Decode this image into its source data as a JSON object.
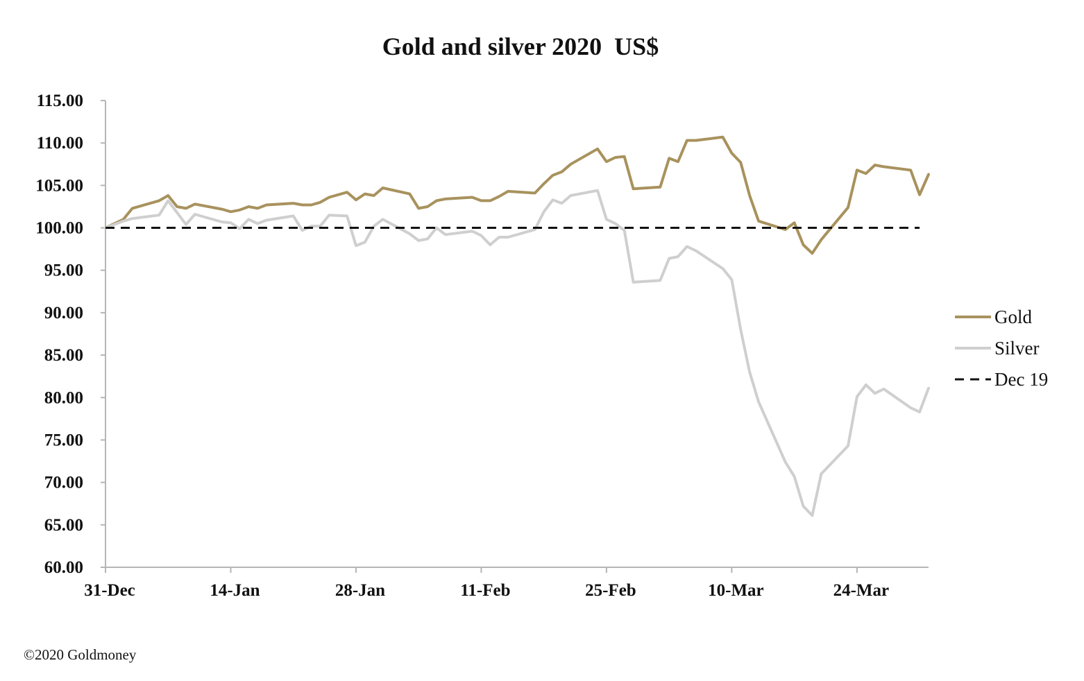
{
  "colors": {
    "gold": "#A8925D",
    "silver": "#CFCFCF",
    "baseline": "#111111",
    "axis": "#B5B5B5"
  },
  "footer": {
    "copyright": "©2020 Goldmoney"
  },
  "chart_data": {
    "type": "line",
    "title": "Gold and silver 2020  US$",
    "xlabel": "",
    "ylabel": "",
    "ylim": [
      60,
      115
    ],
    "y_ticks": [
      60,
      65,
      70,
      75,
      80,
      85,
      90,
      95,
      100,
      105,
      110,
      115
    ],
    "y_tick_labels": [
      "60.00",
      "65.00",
      "70.00",
      "75.00",
      "80.00",
      "85.00",
      "90.00",
      "95.00",
      "100.00",
      "105.00",
      "110.00",
      "115.00"
    ],
    "x_range": [
      "2019-12-31",
      "2020-04-01"
    ],
    "x_ticks": [
      "2019-12-31",
      "2020-01-14",
      "2020-01-28",
      "2020-02-11",
      "2020-02-25",
      "2020-03-10",
      "2020-03-24"
    ],
    "x_tick_labels": [
      "31-Dec",
      "14-Jan",
      "28-Jan",
      "11-Feb",
      "25-Feb",
      "10-Mar",
      "24-Mar"
    ],
    "grid": false,
    "legend_position": "right",
    "series": [
      {
        "name": "Gold",
        "color": "#A8925D",
        "style": "solid",
        "points": [
          [
            "2019-12-31",
            100.0
          ],
          [
            "2020-01-02",
            101.0
          ],
          [
            "2020-01-03",
            102.3
          ],
          [
            "2020-01-06",
            103.2
          ],
          [
            "2020-01-07",
            103.8
          ],
          [
            "2020-01-08",
            102.5
          ],
          [
            "2020-01-09",
            102.3
          ],
          [
            "2020-01-10",
            102.8
          ],
          [
            "2020-01-13",
            102.2
          ],
          [
            "2020-01-14",
            101.9
          ],
          [
            "2020-01-15",
            102.1
          ],
          [
            "2020-01-16",
            102.5
          ],
          [
            "2020-01-17",
            102.3
          ],
          [
            "2020-01-18",
            102.7
          ],
          [
            "2020-01-21",
            102.9
          ],
          [
            "2020-01-22",
            102.7
          ],
          [
            "2020-01-23",
            102.7
          ],
          [
            "2020-01-24",
            103.0
          ],
          [
            "2020-01-25",
            103.6
          ],
          [
            "2020-01-27",
            104.2
          ],
          [
            "2020-01-28",
            103.3
          ],
          [
            "2020-01-29",
            104.0
          ],
          [
            "2020-01-30",
            103.8
          ],
          [
            "2020-01-31",
            104.7
          ],
          [
            "2020-02-03",
            104.0
          ],
          [
            "2020-02-04",
            102.3
          ],
          [
            "2020-02-05",
            102.5
          ],
          [
            "2020-02-06",
            103.2
          ],
          [
            "2020-02-07",
            103.4
          ],
          [
            "2020-02-10",
            103.6
          ],
          [
            "2020-02-11",
            103.2
          ],
          [
            "2020-02-12",
            103.2
          ],
          [
            "2020-02-13",
            103.7
          ],
          [
            "2020-02-14",
            104.3
          ],
          [
            "2020-02-17",
            104.1
          ],
          [
            "2020-02-18",
            105.2
          ],
          [
            "2020-02-19",
            106.2
          ],
          [
            "2020-02-20",
            106.6
          ],
          [
            "2020-02-21",
            107.5
          ],
          [
            "2020-02-24",
            109.3
          ],
          [
            "2020-02-25",
            107.8
          ],
          [
            "2020-02-26",
            108.3
          ],
          [
            "2020-02-27",
            108.4
          ],
          [
            "2020-02-28",
            104.6
          ],
          [
            "2020-03-02",
            104.8
          ],
          [
            "2020-03-03",
            108.2
          ],
          [
            "2020-03-04",
            107.8
          ],
          [
            "2020-03-05",
            110.3
          ],
          [
            "2020-03-06",
            110.3
          ],
          [
            "2020-03-09",
            110.7
          ],
          [
            "2020-03-10",
            108.8
          ],
          [
            "2020-03-11",
            107.7
          ],
          [
            "2020-03-12",
            103.8
          ],
          [
            "2020-03-13",
            100.8
          ],
          [
            "2020-03-16",
            99.8
          ],
          [
            "2020-03-17",
            100.6
          ],
          [
            "2020-03-18",
            98.0
          ],
          [
            "2020-03-19",
            97.0
          ],
          [
            "2020-03-20",
            98.6
          ],
          [
            "2020-03-23",
            102.4
          ],
          [
            "2020-03-24",
            106.8
          ],
          [
            "2020-03-25",
            106.4
          ],
          [
            "2020-03-26",
            107.4
          ],
          [
            "2020-03-27",
            107.2
          ],
          [
            "2020-03-30",
            106.8
          ],
          [
            "2020-03-31",
            103.9
          ],
          [
            "2020-04-01",
            106.3
          ]
        ]
      },
      {
        "name": "Silver",
        "color": "#CFCFCF",
        "style": "solid",
        "points": [
          [
            "2019-12-31",
            100.0
          ],
          [
            "2020-01-02",
            100.8
          ],
          [
            "2020-01-03",
            101.1
          ],
          [
            "2020-01-06",
            101.5
          ],
          [
            "2020-01-07",
            103.2
          ],
          [
            "2020-01-08",
            101.8
          ],
          [
            "2020-01-09",
            100.4
          ],
          [
            "2020-01-10",
            101.6
          ],
          [
            "2020-01-13",
            100.7
          ],
          [
            "2020-01-14",
            100.6
          ],
          [
            "2020-01-15",
            99.9
          ],
          [
            "2020-01-16",
            101.0
          ],
          [
            "2020-01-17",
            100.5
          ],
          [
            "2020-01-18",
            100.9
          ],
          [
            "2020-01-21",
            101.4
          ],
          [
            "2020-01-22",
            99.7
          ],
          [
            "2020-01-23",
            100.2
          ],
          [
            "2020-01-24",
            100.2
          ],
          [
            "2020-01-25",
            101.5
          ],
          [
            "2020-01-27",
            101.4
          ],
          [
            "2020-01-28",
            97.9
          ],
          [
            "2020-01-29",
            98.3
          ],
          [
            "2020-01-30",
            100.2
          ],
          [
            "2020-01-31",
            101.0
          ],
          [
            "2020-02-03",
            99.3
          ],
          [
            "2020-02-04",
            98.5
          ],
          [
            "2020-02-05",
            98.7
          ],
          [
            "2020-02-06",
            100.0
          ],
          [
            "2020-02-07",
            99.2
          ],
          [
            "2020-02-10",
            99.6
          ],
          [
            "2020-02-11",
            99.1
          ],
          [
            "2020-02-12",
            98.0
          ],
          [
            "2020-02-13",
            98.9
          ],
          [
            "2020-02-14",
            98.9
          ],
          [
            "2020-02-17",
            99.8
          ],
          [
            "2020-02-18",
            101.9
          ],
          [
            "2020-02-19",
            103.3
          ],
          [
            "2020-02-20",
            102.9
          ],
          [
            "2020-02-21",
            103.8
          ],
          [
            "2020-02-24",
            104.4
          ],
          [
            "2020-02-25",
            101.0
          ],
          [
            "2020-02-26",
            100.5
          ],
          [
            "2020-02-27",
            99.7
          ],
          [
            "2020-02-28",
            93.6
          ],
          [
            "2020-03-02",
            93.8
          ],
          [
            "2020-03-03",
            96.4
          ],
          [
            "2020-03-04",
            96.6
          ],
          [
            "2020-03-05",
            97.8
          ],
          [
            "2020-03-06",
            97.3
          ],
          [
            "2020-03-09",
            95.2
          ],
          [
            "2020-03-10",
            93.9
          ],
          [
            "2020-03-11",
            88.0
          ],
          [
            "2020-03-12",
            83.0
          ],
          [
            "2020-03-13",
            79.5
          ],
          [
            "2020-03-16",
            72.4
          ],
          [
            "2020-03-17",
            70.7
          ],
          [
            "2020-03-18",
            67.2
          ],
          [
            "2020-03-19",
            66.1
          ],
          [
            "2020-03-20",
            71.0
          ],
          [
            "2020-03-23",
            74.3
          ],
          [
            "2020-03-24",
            80.1
          ],
          [
            "2020-03-25",
            81.5
          ],
          [
            "2020-03-26",
            80.5
          ],
          [
            "2020-03-27",
            81.0
          ],
          [
            "2020-03-30",
            78.8
          ],
          [
            "2020-03-31",
            78.3
          ],
          [
            "2020-04-01",
            81.1
          ]
        ]
      },
      {
        "name": "Dec 19",
        "color": "#111111",
        "style": "dashed",
        "points": [
          [
            "2019-12-31",
            100.0
          ],
          [
            "2020-03-31",
            100.0
          ]
        ]
      }
    ]
  }
}
